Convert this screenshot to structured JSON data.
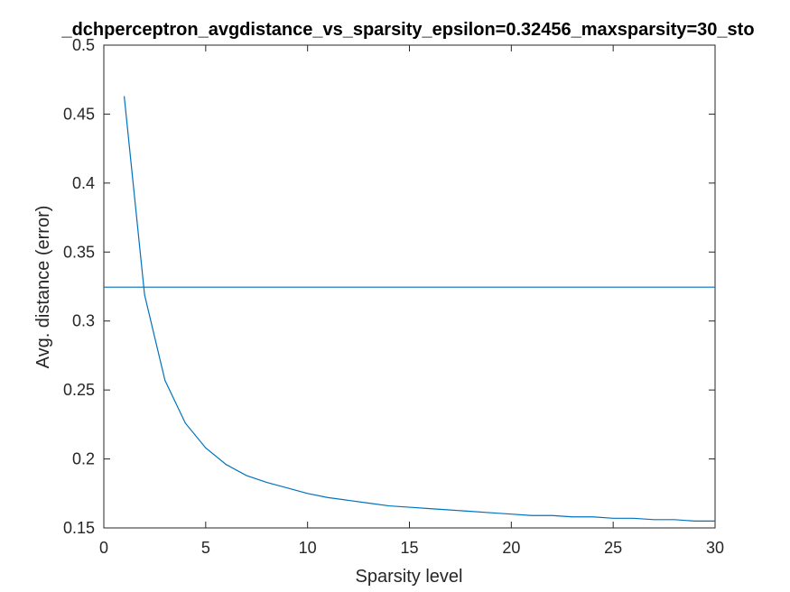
{
  "chart_data": {
    "type": "line",
    "title": "_dchperceptron_avgdistance_vs_sparsity_epsilon=0.32456_maxsparsity=30_sto",
    "xlabel": "Sparsity level",
    "ylabel": "Avg. distance (error)",
    "xlim": [
      0,
      30
    ],
    "ylim": [
      0.15,
      0.5
    ],
    "xticks": [
      0,
      5,
      10,
      15,
      20,
      25,
      30
    ],
    "xtick_labels": [
      "0",
      "5",
      "10",
      "15",
      "20",
      "25",
      "30"
    ],
    "yticks": [
      0.15,
      0.2,
      0.25,
      0.3,
      0.35,
      0.4,
      0.45,
      0.5
    ],
    "ytick_labels": [
      "0.15",
      "0.2",
      "0.25",
      "0.3",
      "0.35",
      "0.4",
      "0.45",
      "0.5"
    ],
    "grid": false,
    "line_color": "#0072BD",
    "series": [
      {
        "x": [
          1,
          2,
          3,
          4,
          5,
          6,
          7,
          8,
          9,
          10,
          11,
          12,
          13,
          14,
          15,
          16,
          17,
          18,
          19,
          20,
          21,
          22,
          23,
          24,
          25,
          26,
          27,
          28,
          29,
          30
        ],
        "values": [
          0.463,
          0.319,
          0.257,
          0.226,
          0.208,
          0.196,
          0.188,
          0.183,
          0.179,
          0.175,
          0.172,
          0.17,
          0.168,
          0.166,
          0.165,
          0.164,
          0.163,
          0.162,
          0.161,
          0.16,
          0.159,
          0.159,
          0.158,
          0.158,
          0.157,
          0.157,
          0.156,
          0.156,
          0.155,
          0.155
        ]
      },
      {
        "x": [
          0,
          30
        ],
        "values": [
          0.32456,
          0.32456
        ]
      }
    ]
  }
}
